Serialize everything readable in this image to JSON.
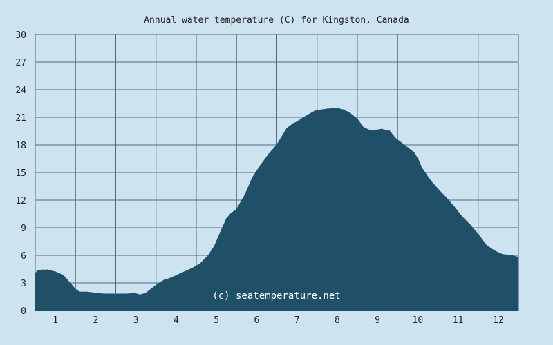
{
  "chart_data": {
    "type": "area",
    "title": "Annual water temperature (C) for Kingston, Canada",
    "xlabel": "",
    "ylabel": "",
    "watermark": "(c) seatemperature.net",
    "xlim": [
      0.5,
      12.5
    ],
    "ylim": [
      0,
      30
    ],
    "yticks": [
      0,
      3,
      6,
      9,
      12,
      15,
      18,
      21,
      24,
      27,
      30
    ],
    "xticks": [
      1,
      2,
      3,
      4,
      5,
      6,
      7,
      8,
      9,
      10,
      11,
      12
    ],
    "grid": true,
    "colors": {
      "background": "#cde3ef",
      "fill": "#1f5068",
      "grid": "#4a6a84",
      "text": "#222222"
    },
    "series": [
      {
        "x": [
          0.5,
          0.55,
          0.65,
          0.8,
          0.9,
          1.0,
          1.1,
          1.2,
          1.3,
          1.4,
          1.5,
          1.6,
          1.7,
          1.8,
          2.0,
          2.2,
          2.4,
          2.6,
          2.8,
          2.95,
          3.1,
          3.25,
          3.4,
          3.55,
          3.7,
          3.85,
          4.0,
          4.2,
          4.4,
          4.6,
          4.8,
          4.95,
          5.1,
          5.25,
          5.35,
          5.5,
          5.7,
          5.9,
          6.1,
          6.3,
          6.5,
          6.75,
          6.9,
          7.0,
          7.1,
          7.25,
          7.45,
          7.6,
          7.75,
          8.0,
          8.15,
          8.3,
          8.5,
          8.65,
          8.8,
          8.95,
          9.1,
          9.3,
          9.45,
          9.6,
          9.75,
          9.9,
          10.0,
          10.1,
          10.3,
          10.5,
          10.7,
          10.9,
          11.1,
          11.3,
          11.5,
          11.7,
          11.9,
          12.1,
          12.3,
          12.5
        ],
        "values": [
          4.0,
          4.3,
          4.4,
          4.4,
          4.3,
          4.2,
          4.0,
          3.8,
          3.3,
          2.8,
          2.3,
          2.0,
          2.0,
          2.0,
          1.9,
          1.8,
          1.8,
          1.8,
          1.8,
          1.9,
          1.7,
          1.9,
          2.4,
          2.9,
          3.3,
          3.5,
          3.8,
          4.2,
          4.6,
          5.1,
          6.0,
          7.0,
          8.5,
          10.0,
          10.5,
          11.0,
          12.5,
          14.5,
          15.8,
          17.0,
          18.0,
          19.8,
          20.3,
          20.5,
          20.8,
          21.2,
          21.7,
          21.8,
          21.9,
          22.0,
          21.8,
          21.5,
          20.8,
          19.9,
          19.6,
          19.6,
          19.7,
          19.5,
          18.7,
          18.2,
          17.7,
          17.2,
          16.5,
          15.5,
          14.2,
          13.2,
          12.3,
          11.3,
          10.2,
          9.3,
          8.3,
          7.1,
          6.5,
          6.1,
          6.0,
          5.8
        ]
      }
    ]
  }
}
